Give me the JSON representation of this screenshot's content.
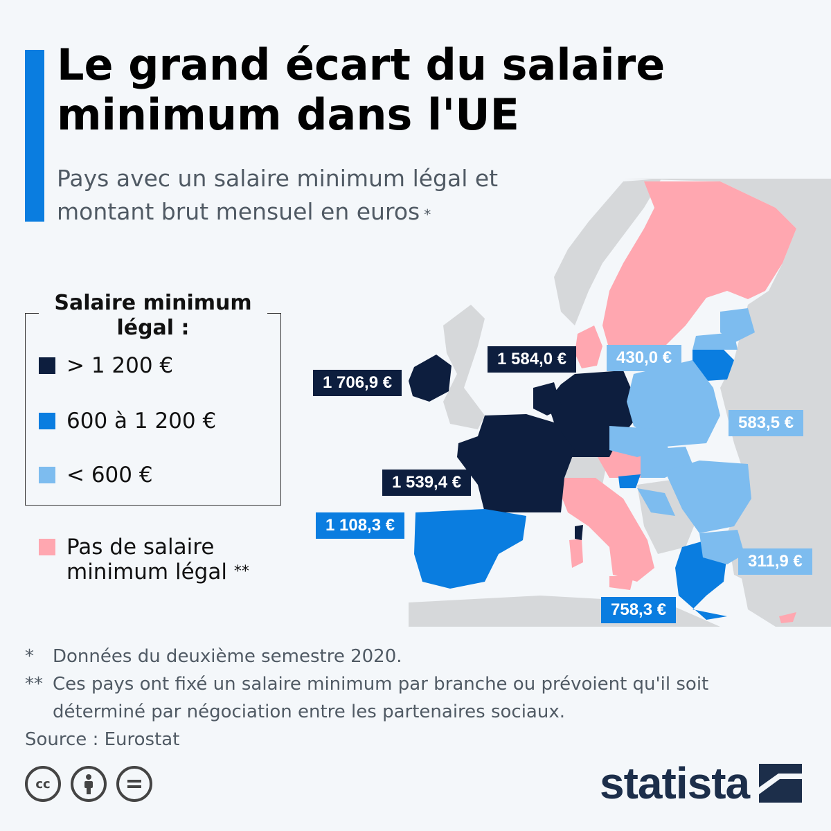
{
  "header": {
    "title": "Le grand écart du salaire minimum dans l'UE",
    "subtitle": "Pays avec un salaire minimum légal et montant brut mensuel en euros",
    "subtitle_mark": "*"
  },
  "legend": {
    "title": "Salaire minimum légal :",
    "items": [
      {
        "label": "> 1 200 €",
        "color": "#0d1e3e"
      },
      {
        "label": "600 à 1 200 €",
        "color": "#0a7de0"
      },
      {
        "label": "< 600 €",
        "color": "#7dbcef"
      }
    ],
    "no_min": {
      "label": "Pas de salaire minimum légal",
      "mark": "**",
      "color": "#ffa7b0"
    }
  },
  "map_labels": {
    "ireland": "1 706,9 €",
    "netherlands": "1 584,0 €",
    "latvia": "430,0 €",
    "poland": "583,5 €",
    "france": "1 539,4 €",
    "spain": "1 108,3 €",
    "bulgaria": "311,9 €",
    "greece": "758,3 €"
  },
  "notes": [
    {
      "mark": "*",
      "text": "Données du deuxième semestre 2020."
    },
    {
      "mark": "**",
      "text": "Ces pays ont fixé un salaire minimum par branche ou prévoient qu'il soit déterminé par négociation entre les partenaires sociaux."
    }
  ],
  "source": "Source : Eurostat",
  "brand": "statista",
  "colors": {
    "accent": "#0a7de0",
    "high": "#0d1e3e",
    "mid": "#0a7de0",
    "low": "#7dbcef",
    "none": "#ffa7b0",
    "land": "#d6d8da"
  },
  "icons": [
    "cc-icon",
    "by-icon",
    "nd-icon"
  ]
}
